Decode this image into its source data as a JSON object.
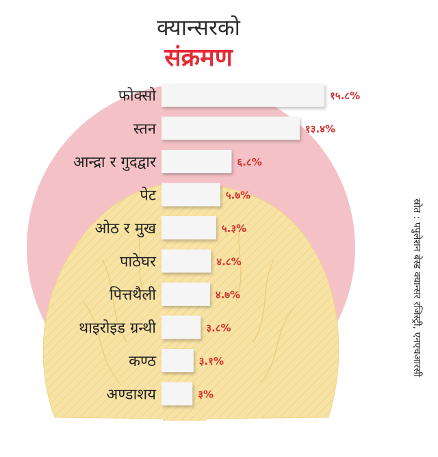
{
  "header": {
    "title_line1": "क्यान्सरको",
    "title_line2": "संक्रमण"
  },
  "source": "स्रोत : पपुलेशन बेस्ड क्यान्सर रजिस्ट्री, एनएचआरसी",
  "colors": {
    "circle": "#f4c2c6",
    "lungs": "#f8e3a6",
    "bar": "#f5f5f5",
    "value_text": "#d42f2f",
    "title_accent": "#e32c37"
  },
  "chart_data": {
    "type": "bar",
    "orientation": "horizontal",
    "title": "क्यान्सरको संक्रमण",
    "categories": [
      "फोक्सो",
      "स्तन",
      "आन्द्रा र गुदद्वार",
      "पेट",
      "ओठ र मुख",
      "पाठेघर",
      "पित्तथैली",
      "थाइरोइड ग्रन्थी",
      "कण्ठ",
      "अण्डाशय"
    ],
    "values": [
      15.8,
      13.4,
      6.8,
      5.7,
      5.3,
      4.8,
      4.7,
      3.8,
      3.1,
      3
    ],
    "value_labels": [
      "१५.८%",
      "१३.४%",
      "६.८%",
      "५.७%",
      "५.३%",
      "४.८%",
      "४.७%",
      "३.८%",
      "३.१%",
      "३%"
    ],
    "unit": "%"
  }
}
